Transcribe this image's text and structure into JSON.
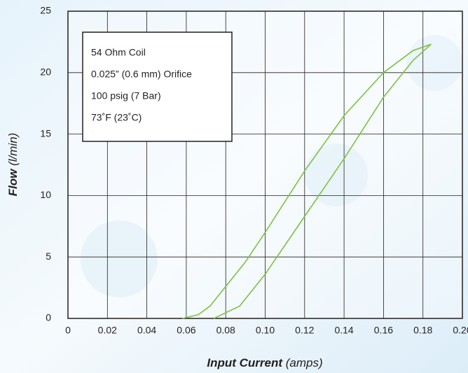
{
  "chart_data": {
    "type": "line",
    "annotation": [
      "54 Ohm Coil",
      "0.025” (0.6 mm) Orifice",
      "100 psig (7 Bar)",
      "73˚F (23˚C)"
    ],
    "xlabel": "Input Current",
    "xlabel_unit": "(amps)",
    "ylabel": "Flow",
    "ylabel_unit": "(l/min)",
    "xlim": [
      0,
      0.2
    ],
    "xticks": [
      0,
      0.02,
      0.04,
      0.06,
      0.08,
      {
        "value": 0.1,
        "label": "0.10"
      },
      0.12,
      0.14,
      0.16,
      0.18,
      {
        "value": 0.2,
        "label": "0.20"
      }
    ],
    "ylim": [
      0,
      25
    ],
    "yticks": [
      0,
      5,
      10,
      15,
      20,
      25
    ],
    "grid": true,
    "series": [
      {
        "color": "#7dc242",
        "x": [
          0.058,
          0.066,
          0.072,
          0.078,
          0.09,
          0.1,
          0.12,
          0.14,
          0.16,
          0.175,
          0.184,
          0.175,
          0.16,
          0.14,
          0.12,
          0.1,
          0.087,
          0.074
        ],
        "values": [
          0,
          0.3,
          1,
          2.2,
          4.6,
          7,
          12,
          16.5,
          20,
          21.8,
          22.3,
          21,
          18,
          13,
          8.3,
          3.6,
          1,
          0
        ]
      }
    ]
  }
}
